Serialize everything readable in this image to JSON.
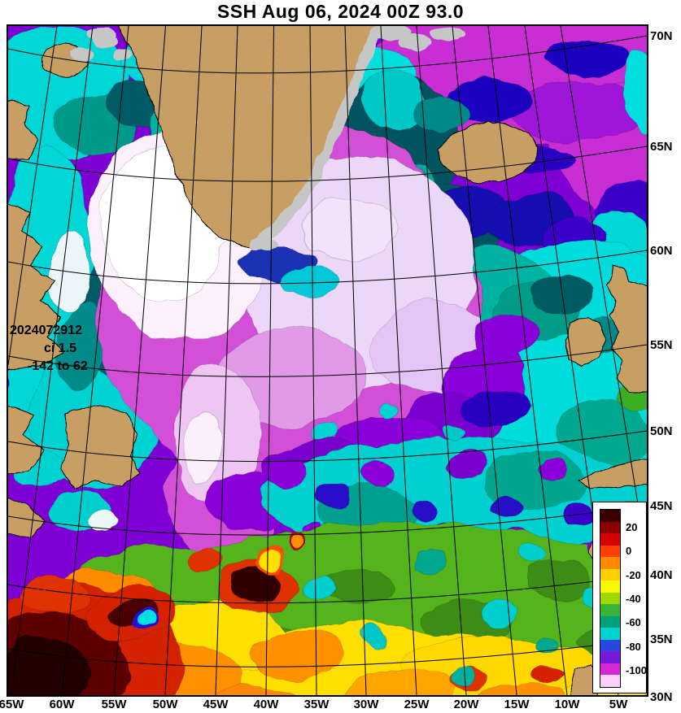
{
  "title": "SSH Aug 06, 2024 00Z 93.0",
  "annotation": {
    "run_id": "2024072912",
    "contour_interval": "ci 1.5",
    "range": "-142 to 62"
  },
  "axes": {
    "latitude_labels": [
      "70N",
      "65N",
      "60N",
      "55N",
      "50N",
      "45N",
      "40N",
      "35N",
      "30N"
    ],
    "longitude_labels": [
      "65W",
      "60W",
      "55W",
      "50W",
      "45W",
      "40W",
      "35W",
      "30W",
      "25W",
      "20W",
      "15W",
      "10W",
      "5W"
    ]
  },
  "colorbar": {
    "tick_labels": [
      "20",
      "0",
      "-20",
      "-40",
      "-60",
      "-80",
      "-100"
    ],
    "colors": [
      "#3c0000",
      "#8b0000",
      "#d40000",
      "#ff4000",
      "#ff8c00",
      "#ffd000",
      "#f8f800",
      "#a0d800",
      "#38b438",
      "#00a078",
      "#00d2d2",
      "#2848e0",
      "#7818d8",
      "#d428d4",
      "#f8d0f8"
    ]
  },
  "palette": {
    "land": "#c79e63",
    "ice": "#c6c6c6",
    "grid": "#000000",
    "low_ssh": "#ffffff",
    "high_ssh": "#3c0000"
  }
}
